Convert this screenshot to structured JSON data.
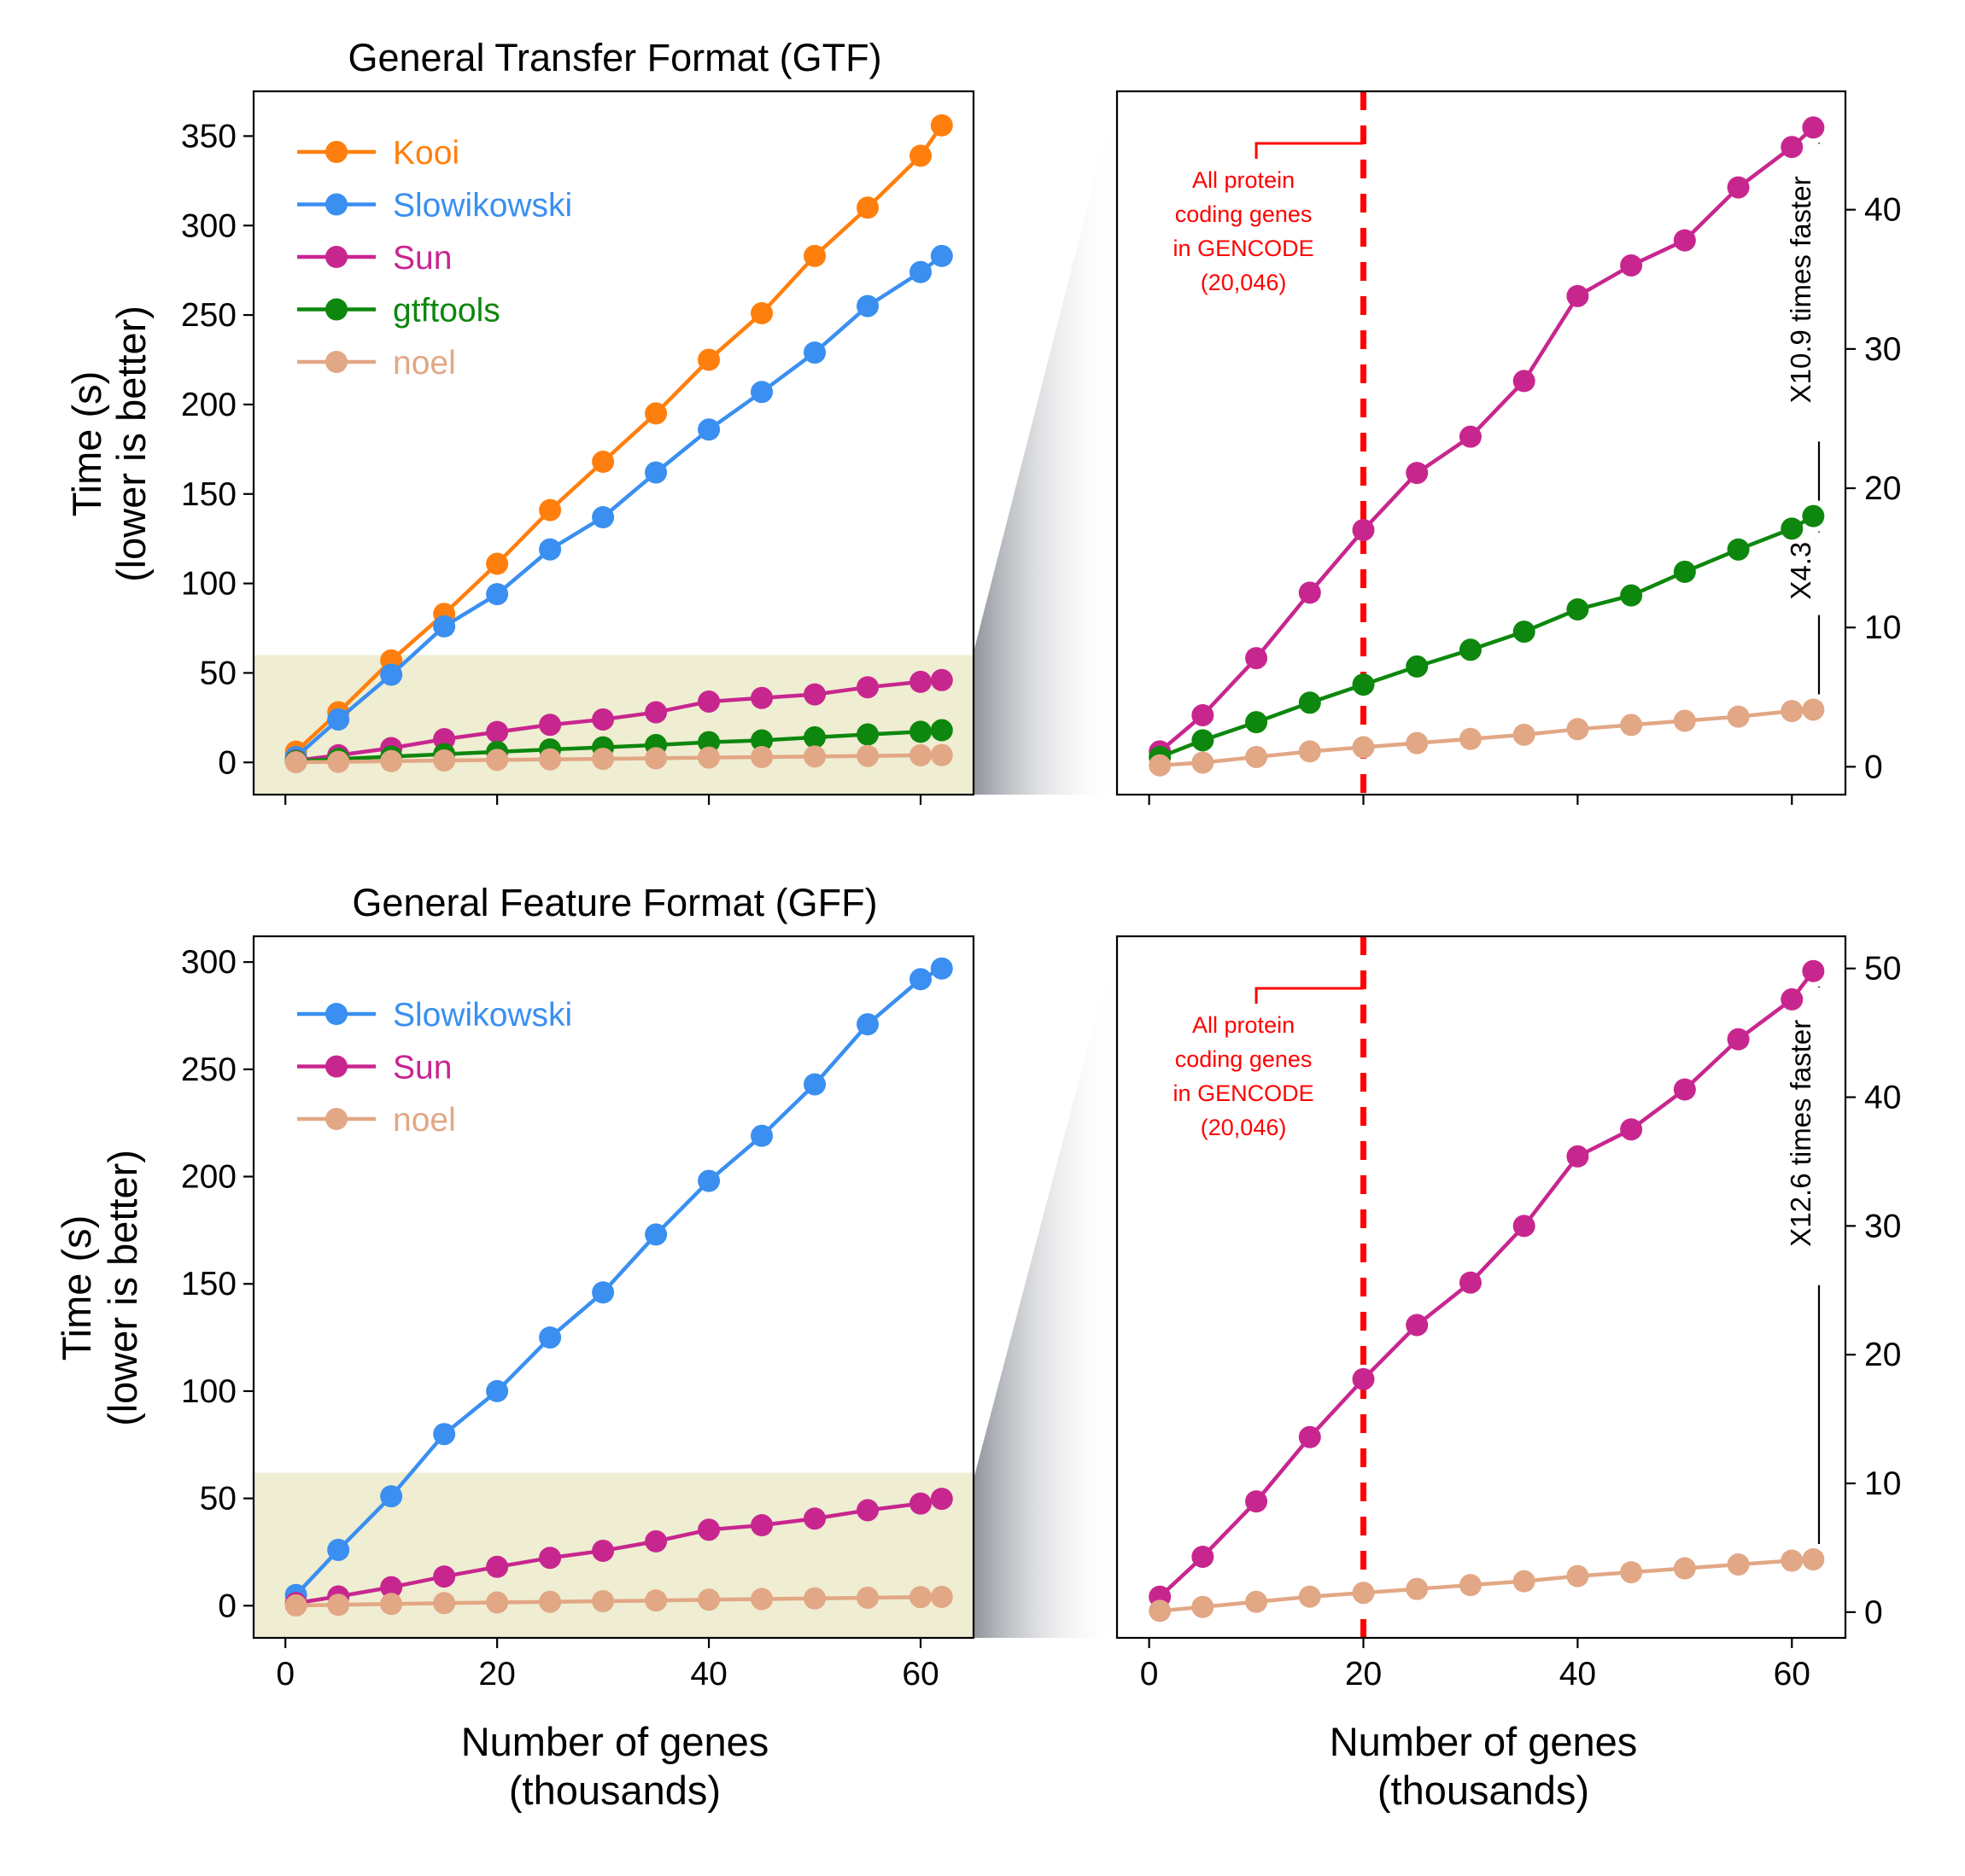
{
  "chart_data": [
    {
      "id": "gtf-full",
      "type": "line",
      "title": "General Transfer Format (GTF)",
      "xlabel": "",
      "ylabel": [
        "Time (s)",
        "(lower is better)"
      ],
      "xlim": [
        -3,
        65
      ],
      "ylim": [
        -18,
        375
      ],
      "xticks": [
        "0",
        "20",
        "40",
        "60"
      ],
      "yticks": [
        "0",
        "50",
        "100",
        "150",
        "200",
        "250",
        "300",
        "350"
      ],
      "legend_position": "top-left",
      "highlight_region": {
        "y": [
          -18,
          60
        ],
        "color": "#efedd2"
      },
      "x": [
        1,
        5,
        10,
        15,
        20,
        25,
        30,
        35,
        40,
        45,
        50,
        55,
        60,
        62
      ],
      "series": [
        {
          "name": "Kooi",
          "color": "#ff7f0e",
          "values": [
            6,
            28,
            57,
            83,
            111,
            141,
            168,
            195,
            225,
            251,
            283,
            310,
            339,
            356
          ]
        },
        {
          "name": "Slowikowski",
          "color": "#3a8ff0",
          "values": [
            3,
            24,
            49,
            76,
            94,
            119,
            137,
            162,
            186,
            207,
            229,
            255,
            274,
            283
          ]
        },
        {
          "name": "Sun",
          "color": "#c8268f",
          "values": [
            1,
            4,
            8,
            13,
            17,
            21,
            24,
            28,
            34,
            36,
            38,
            42,
            45,
            46
          ]
        },
        {
          "name": "gtftools",
          "color": "#0d870d",
          "values": [
            0.7,
            1.9,
            3.2,
            4.6,
            5.9,
            7.2,
            8.4,
            9.7,
            11.3,
            12.3,
            14.0,
            15.6,
            17.1,
            18.0
          ]
        },
        {
          "name": "noel",
          "color": "#e2a785",
          "values": [
            0.1,
            0.3,
            0.7,
            1.1,
            1.4,
            1.7,
            2.0,
            2.3,
            2.7,
            3.0,
            3.3,
            3.6,
            4.0,
            4.1
          ]
        }
      ]
    },
    {
      "id": "gtf-zoom",
      "type": "line",
      "title": "",
      "xlabel": "",
      "ylabel": "",
      "xlim": [
        -3,
        65
      ],
      "ylim": [
        -2,
        48.5
      ],
      "xticks": [
        "0",
        "20",
        "40",
        "60"
      ],
      "yticks": [
        "0",
        "10",
        "20",
        "30",
        "40"
      ],
      "x": [
        1,
        5,
        10,
        15,
        20,
        25,
        30,
        35,
        40,
        45,
        50,
        55,
        60,
        62
      ],
      "series": [
        {
          "name": "Sun",
          "color": "#c8268f",
          "values": [
            1.1,
            3.7,
            7.8,
            12.5,
            17.0,
            21.1,
            23.7,
            27.7,
            33.8,
            36.0,
            37.8,
            41.6,
            44.5,
            45.9
          ]
        },
        {
          "name": "gtftools",
          "color": "#0d870d",
          "values": [
            0.7,
            1.9,
            3.2,
            4.6,
            5.9,
            7.2,
            8.4,
            9.7,
            11.3,
            12.3,
            14.0,
            15.6,
            17.1,
            18.0
          ]
        },
        {
          "name": "noel",
          "color": "#e2a785",
          "values": [
            0.1,
            0.3,
            0.7,
            1.1,
            1.4,
            1.7,
            2.0,
            2.3,
            2.7,
            3.0,
            3.3,
            3.6,
            4.0,
            4.1
          ]
        }
      ],
      "reference_line": {
        "x": 20,
        "color": "#ff0000",
        "style": "dashed"
      },
      "annotation": {
        "lines": [
          "All protein",
          "coding genes",
          "in GENCODE",
          "(20,046)"
        ],
        "color": "#ff0000"
      },
      "speedups": [
        {
          "label": "X10.9 times faster",
          "y_range": [
            18.0,
            45.9
          ]
        },
        {
          "label": "X4.3",
          "y_range": [
            4.1,
            18.0
          ]
        }
      ]
    },
    {
      "id": "gff-full",
      "type": "line",
      "title": "General Feature Format (GFF)",
      "xlabel": [
        "Number of genes",
        "(thousands)"
      ],
      "ylabel": [
        "Time (s)",
        "(lower is better)"
      ],
      "xlim": [
        -3,
        65
      ],
      "ylim": [
        -15,
        312
      ],
      "xticks": [
        "0",
        "20",
        "40",
        "60"
      ],
      "yticks": [
        "0",
        "50",
        "100",
        "150",
        "200",
        "250",
        "300"
      ],
      "legend_position": "top-left",
      "highlight_region": {
        "y": [
          -15,
          62
        ],
        "color": "#efedd2"
      },
      "x": [
        1,
        5,
        10,
        15,
        20,
        25,
        30,
        35,
        40,
        45,
        50,
        55,
        60,
        62
      ],
      "series": [
        {
          "name": "Slowikowski",
          "color": "#3a8ff0",
          "values": [
            5,
            26,
            51,
            80,
            100,
            125,
            146,
            173,
            198,
            219,
            243,
            271,
            292,
            297
          ]
        },
        {
          "name": "Sun",
          "color": "#c8268f",
          "values": [
            1.2,
            4.3,
            8.6,
            13.6,
            18.1,
            22.3,
            25.6,
            30.0,
            35.4,
            37.5,
            40.6,
            44.5,
            47.6,
            49.8
          ]
        },
        {
          "name": "noel",
          "color": "#e2a785",
          "values": [
            0.1,
            0.4,
            0.8,
            1.2,
            1.5,
            1.8,
            2.1,
            2.4,
            2.8,
            3.1,
            3.4,
            3.7,
            4.0,
            4.1
          ]
        }
      ]
    },
    {
      "id": "gff-zoom",
      "type": "line",
      "title": "",
      "xlabel": [
        "Number of genes",
        "(thousands)"
      ],
      "ylabel": "",
      "xlim": [
        -3,
        65
      ],
      "ylim": [
        -2,
        52.5
      ],
      "xticks": [
        "0",
        "20",
        "40",
        "60"
      ],
      "yticks": [
        "0",
        "10",
        "20",
        "30",
        "40",
        "50"
      ],
      "x": [
        1,
        5,
        10,
        15,
        20,
        25,
        30,
        35,
        40,
        45,
        50,
        55,
        60,
        62
      ],
      "series": [
        {
          "name": "Sun",
          "color": "#c8268f",
          "values": [
            1.2,
            4.3,
            8.6,
            13.6,
            18.1,
            22.3,
            25.6,
            30.0,
            35.4,
            37.5,
            40.6,
            44.5,
            47.6,
            49.8
          ]
        },
        {
          "name": "noel",
          "color": "#e2a785",
          "values": [
            0.1,
            0.4,
            0.8,
            1.2,
            1.5,
            1.8,
            2.1,
            2.4,
            2.8,
            3.1,
            3.4,
            3.7,
            4.0,
            4.1
          ]
        }
      ],
      "reference_line": {
        "x": 20,
        "color": "#ff0000",
        "style": "dashed"
      },
      "annotation": {
        "lines": [
          "All protein",
          "coding genes",
          "in GENCODE",
          "(20,046)"
        ],
        "color": "#ff0000"
      },
      "speedups": [
        {
          "label": "X12.6 times faster",
          "y_range": [
            4.1,
            49.8
          ]
        }
      ]
    }
  ]
}
